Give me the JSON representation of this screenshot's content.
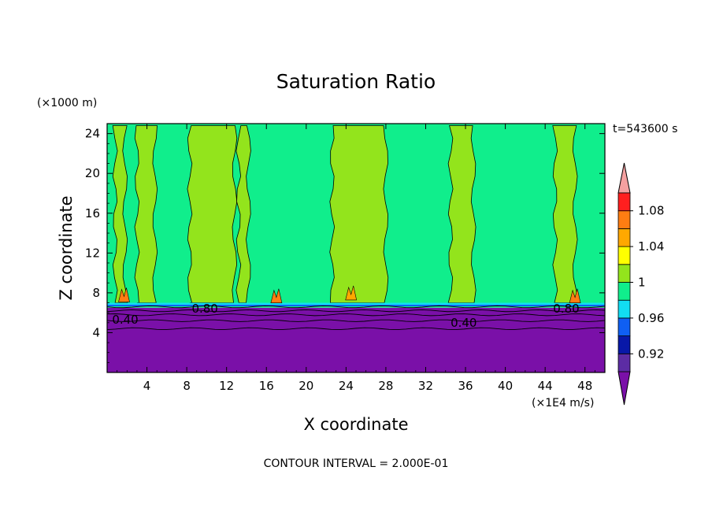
{
  "chart_data": {
    "type": "heatmap",
    "title": "Saturation Ratio",
    "xlabel": "X coordinate",
    "ylabel": "Z coordinate",
    "x_units": "(×1E4 m/s)",
    "y_units": "(×1000 m)",
    "time_label": "t=543600 s",
    "footer": "CONTOUR INTERVAL = 2.000E-01",
    "xlim": [
      0,
      50
    ],
    "ylim": [
      0,
      25
    ],
    "x_ticks": [
      "4",
      "8",
      "12",
      "16",
      "20",
      "24",
      "28",
      "32",
      "36",
      "40",
      "44",
      "48"
    ],
    "y_ticks": [
      "4",
      "8",
      "12",
      "16",
      "20",
      "24"
    ],
    "x_tick_values": [
      4,
      8,
      12,
      16,
      20,
      24,
      28,
      32,
      36,
      40,
      44,
      48
    ],
    "y_tick_values": [
      4,
      8,
      12,
      16,
      20,
      24
    ],
    "colorbar": {
      "levels": [
        0.9,
        0.92,
        0.94,
        0.96,
        0.98,
        1.0,
        1.02,
        1.04,
        1.06,
        1.08,
        1.1
      ],
      "labels": [
        "0.92",
        "0.96",
        "1",
        "1.04",
        "1.08"
      ],
      "label_values": [
        0.92,
        0.96,
        1.0,
        1.04,
        1.08
      ],
      "colors": [
        "#5c2ca4",
        "#0818a8",
        "#0f5ff3",
        "#12ddf2",
        "#10ee8c",
        "#93e41c",
        "#ffff00",
        "#ffa800",
        "#ff7d12",
        "#ff1f1f"
      ],
      "under_color": "#7a10a8",
      "over_color": "#f4a0a0"
    },
    "regions": {
      "lower_layer_value": 0.4,
      "lower_layer_top_z": 6.5,
      "upper_region_value": 0.98
    },
    "contours": [
      {
        "label": "0.40",
        "level": 0.4
      },
      {
        "label": "0.80",
        "level": 0.8
      }
    ],
    "saturated_columns": [
      {
        "x0": 0.8,
        "x1": 1.8,
        "z_top": 24.8
      },
      {
        "x0": 3.0,
        "x1": 4.8,
        "z_top": 24.8
      },
      {
        "x0": 8.3,
        "x1": 12.8,
        "z_top": 24.8
      },
      {
        "x0": 13.2,
        "x1": 14.2,
        "z_top": 24.8
      },
      {
        "x0": 22.6,
        "x1": 28.0,
        "z_top": 24.8
      },
      {
        "x0": 34.5,
        "x1": 36.8,
        "z_top": 24.8
      },
      {
        "x0": 45.0,
        "x1": 47.0,
        "z_top": 24.8
      }
    ],
    "blobs": [
      {
        "x": 1.7,
        "z": 7.4,
        "color_value": 1.06
      },
      {
        "x": 17.0,
        "z": 7.3,
        "color_value": 1.06
      },
      {
        "x": 24.5,
        "z": 7.6,
        "color_value": 1.04
      },
      {
        "x": 47.0,
        "z": 7.3,
        "color_value": 1.06
      }
    ]
  }
}
